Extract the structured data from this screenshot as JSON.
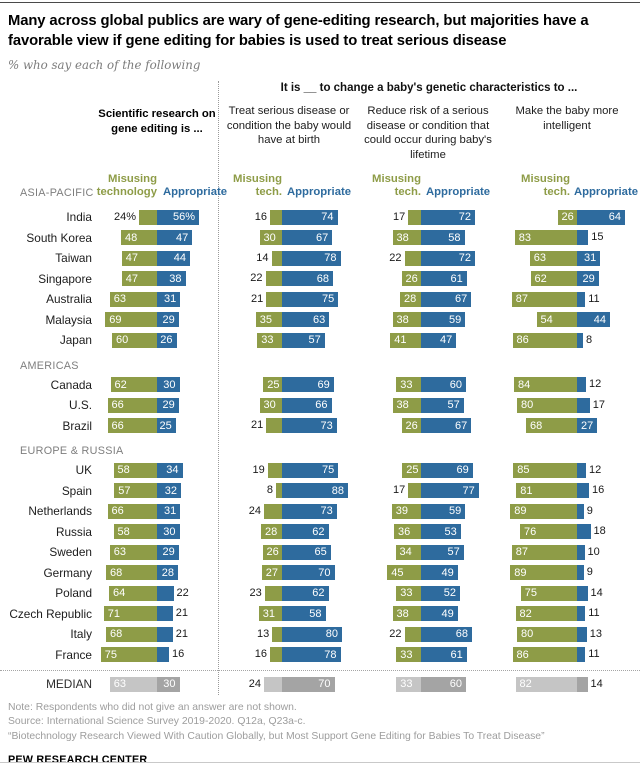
{
  "page": {
    "title": "Many across global publics are wary of gene-editing research, but majorities have a favorable view if gene editing for babies is used to treat serious disease",
    "subtitle": "% who say each of the following"
  },
  "header": {
    "group_title": "It is __ to change a baby's genetic characteristics to ...",
    "col1_title": "Scientific research on gene editing is ...",
    "col2_title": "Treat serious disease or condition the baby would have at birth",
    "col3_title": "Reduce risk of a serious disease or condition that could occur during baby's lifetime",
    "col4_title": "Make the baby more intelligent",
    "legend": [
      {
        "misusing_line1": "Misusing",
        "misusing_line2": "technology",
        "appropriate": "Appropriate"
      },
      {
        "misusing_line1": "Misusing",
        "misusing_line2": "tech.",
        "appropriate": "Appropriate"
      },
      {
        "misusing_line1": "Misusing",
        "misusing_line2": "tech.",
        "appropriate": "Appropriate"
      },
      {
        "misusing_line1": "Misusing",
        "misusing_line2": "tech.",
        "appropriate": "Appropriate"
      }
    ]
  },
  "chart_data": {
    "type": "bar",
    "orientation": "horizontal-paired",
    "unit": "percent",
    "measures": [
      "Misusing technology",
      "Appropriate"
    ],
    "questions": [
      "Scientific research on gene editing is ...",
      "It is __ to change a baby's genetic characteristics to treat serious disease or condition the baby would have at birth",
      "It is __ to change a baby's genetic characteristics to reduce risk of a serious disease or condition that could occur during baby's lifetime",
      "It is __ to change a baby's genetic characteristics to make the baby more intelligent"
    ],
    "rows": [
      {
        "type": "region",
        "label": "ASIA-PACIFIC"
      },
      {
        "type": "country",
        "label": "India",
        "suffix": "%",
        "values": [
          [
            24,
            56
          ],
          [
            16,
            74
          ],
          [
            17,
            72
          ],
          [
            26,
            64
          ]
        ]
      },
      {
        "type": "country",
        "label": "South Korea",
        "values": [
          [
            48,
            47
          ],
          [
            30,
            67
          ],
          [
            38,
            58
          ],
          [
            83,
            15
          ]
        ]
      },
      {
        "type": "country",
        "label": "Taiwan",
        "values": [
          [
            47,
            44
          ],
          [
            14,
            78
          ],
          [
            22,
            72
          ],
          [
            63,
            31
          ]
        ]
      },
      {
        "type": "country",
        "label": "Singapore",
        "values": [
          [
            47,
            38
          ],
          [
            22,
            68
          ],
          [
            26,
            61
          ],
          [
            62,
            29
          ]
        ]
      },
      {
        "type": "country",
        "label": "Australia",
        "values": [
          [
            63,
            31
          ],
          [
            21,
            75
          ],
          [
            28,
            67
          ],
          [
            87,
            11
          ]
        ]
      },
      {
        "type": "country",
        "label": "Malaysia",
        "values": [
          [
            69,
            29
          ],
          [
            35,
            63
          ],
          [
            38,
            59
          ],
          [
            54,
            44
          ]
        ]
      },
      {
        "type": "country",
        "label": "Japan",
        "values": [
          [
            60,
            26
          ],
          [
            33,
            57
          ],
          [
            41,
            47
          ],
          [
            86,
            8
          ]
        ]
      },
      {
        "type": "region",
        "label": "AMERICAS"
      },
      {
        "type": "country",
        "label": "Canada",
        "values": [
          [
            62,
            30
          ],
          [
            25,
            69
          ],
          [
            33,
            60
          ],
          [
            84,
            12
          ]
        ]
      },
      {
        "type": "country",
        "label": "U.S.",
        "values": [
          [
            66,
            29
          ],
          [
            30,
            66
          ],
          [
            38,
            57
          ],
          [
            80,
            17
          ]
        ]
      },
      {
        "type": "country",
        "label": "Brazil",
        "values": [
          [
            66,
            25
          ],
          [
            21,
            73
          ],
          [
            26,
            67
          ],
          [
            68,
            27
          ]
        ]
      },
      {
        "type": "region",
        "label": "EUROPE & RUSSIA"
      },
      {
        "type": "country",
        "label": "UK",
        "values": [
          [
            58,
            34
          ],
          [
            19,
            75
          ],
          [
            25,
            69
          ],
          [
            85,
            12
          ]
        ]
      },
      {
        "type": "country",
        "label": "Spain",
        "values": [
          [
            57,
            32
          ],
          [
            8,
            88
          ],
          [
            17,
            77
          ],
          [
            81,
            16
          ]
        ]
      },
      {
        "type": "country",
        "label": "Netherlands",
        "values": [
          [
            66,
            31
          ],
          [
            24,
            73
          ],
          [
            39,
            59
          ],
          [
            89,
            9
          ]
        ]
      },
      {
        "type": "country",
        "label": "Russia",
        "values": [
          [
            58,
            30
          ],
          [
            28,
            62
          ],
          [
            36,
            53
          ],
          [
            76,
            18
          ]
        ]
      },
      {
        "type": "country",
        "label": "Sweden",
        "values": [
          [
            63,
            29
          ],
          [
            26,
            65
          ],
          [
            34,
            57
          ],
          [
            87,
            10
          ]
        ]
      },
      {
        "type": "country",
        "label": "Germany",
        "values": [
          [
            68,
            28
          ],
          [
            27,
            70
          ],
          [
            45,
            49
          ],
          [
            89,
            9
          ]
        ]
      },
      {
        "type": "country",
        "label": "Poland",
        "values": [
          [
            64,
            22
          ],
          [
            23,
            62
          ],
          [
            33,
            52
          ],
          [
            75,
            14
          ]
        ]
      },
      {
        "type": "country",
        "label": "Czech Republic",
        "values": [
          [
            71,
            21
          ],
          [
            31,
            58
          ],
          [
            38,
            49
          ],
          [
            82,
            11
          ]
        ]
      },
      {
        "type": "country",
        "label": "Italy",
        "values": [
          [
            68,
            21
          ],
          [
            13,
            80
          ],
          [
            22,
            68
          ],
          [
            80,
            13
          ]
        ]
      },
      {
        "type": "country",
        "label": "France",
        "values": [
          [
            75,
            16
          ],
          [
            16,
            78
          ],
          [
            33,
            61
          ],
          [
            86,
            11
          ]
        ]
      },
      {
        "type": "median",
        "label": "MEDIAN",
        "values": [
          [
            63,
            30
          ],
          [
            24,
            70
          ],
          [
            33,
            60
          ],
          [
            82,
            14
          ]
        ]
      }
    ]
  },
  "footer": {
    "note": "Note: Respondents who did not give an answer are not shown.",
    "source": "Source: International Science Survey 2019-2020. Q12a, Q23a-c.",
    "quote": "“Biotechnology Research Viewed With Caution Globally, but Most Support Gene Editing for Babies To Treat Disease”",
    "brand": "PEW RESEARCH CENTER"
  },
  "colors": {
    "misusing_green": "#8E9C47",
    "appropriate_blue": "#2E6B9E",
    "median_light_gray": "#C5C5C5",
    "median_dark_gray": "#A4A4A4",
    "region_gray": "#7E7E7E",
    "note_gray": "#9D9D9D"
  }
}
